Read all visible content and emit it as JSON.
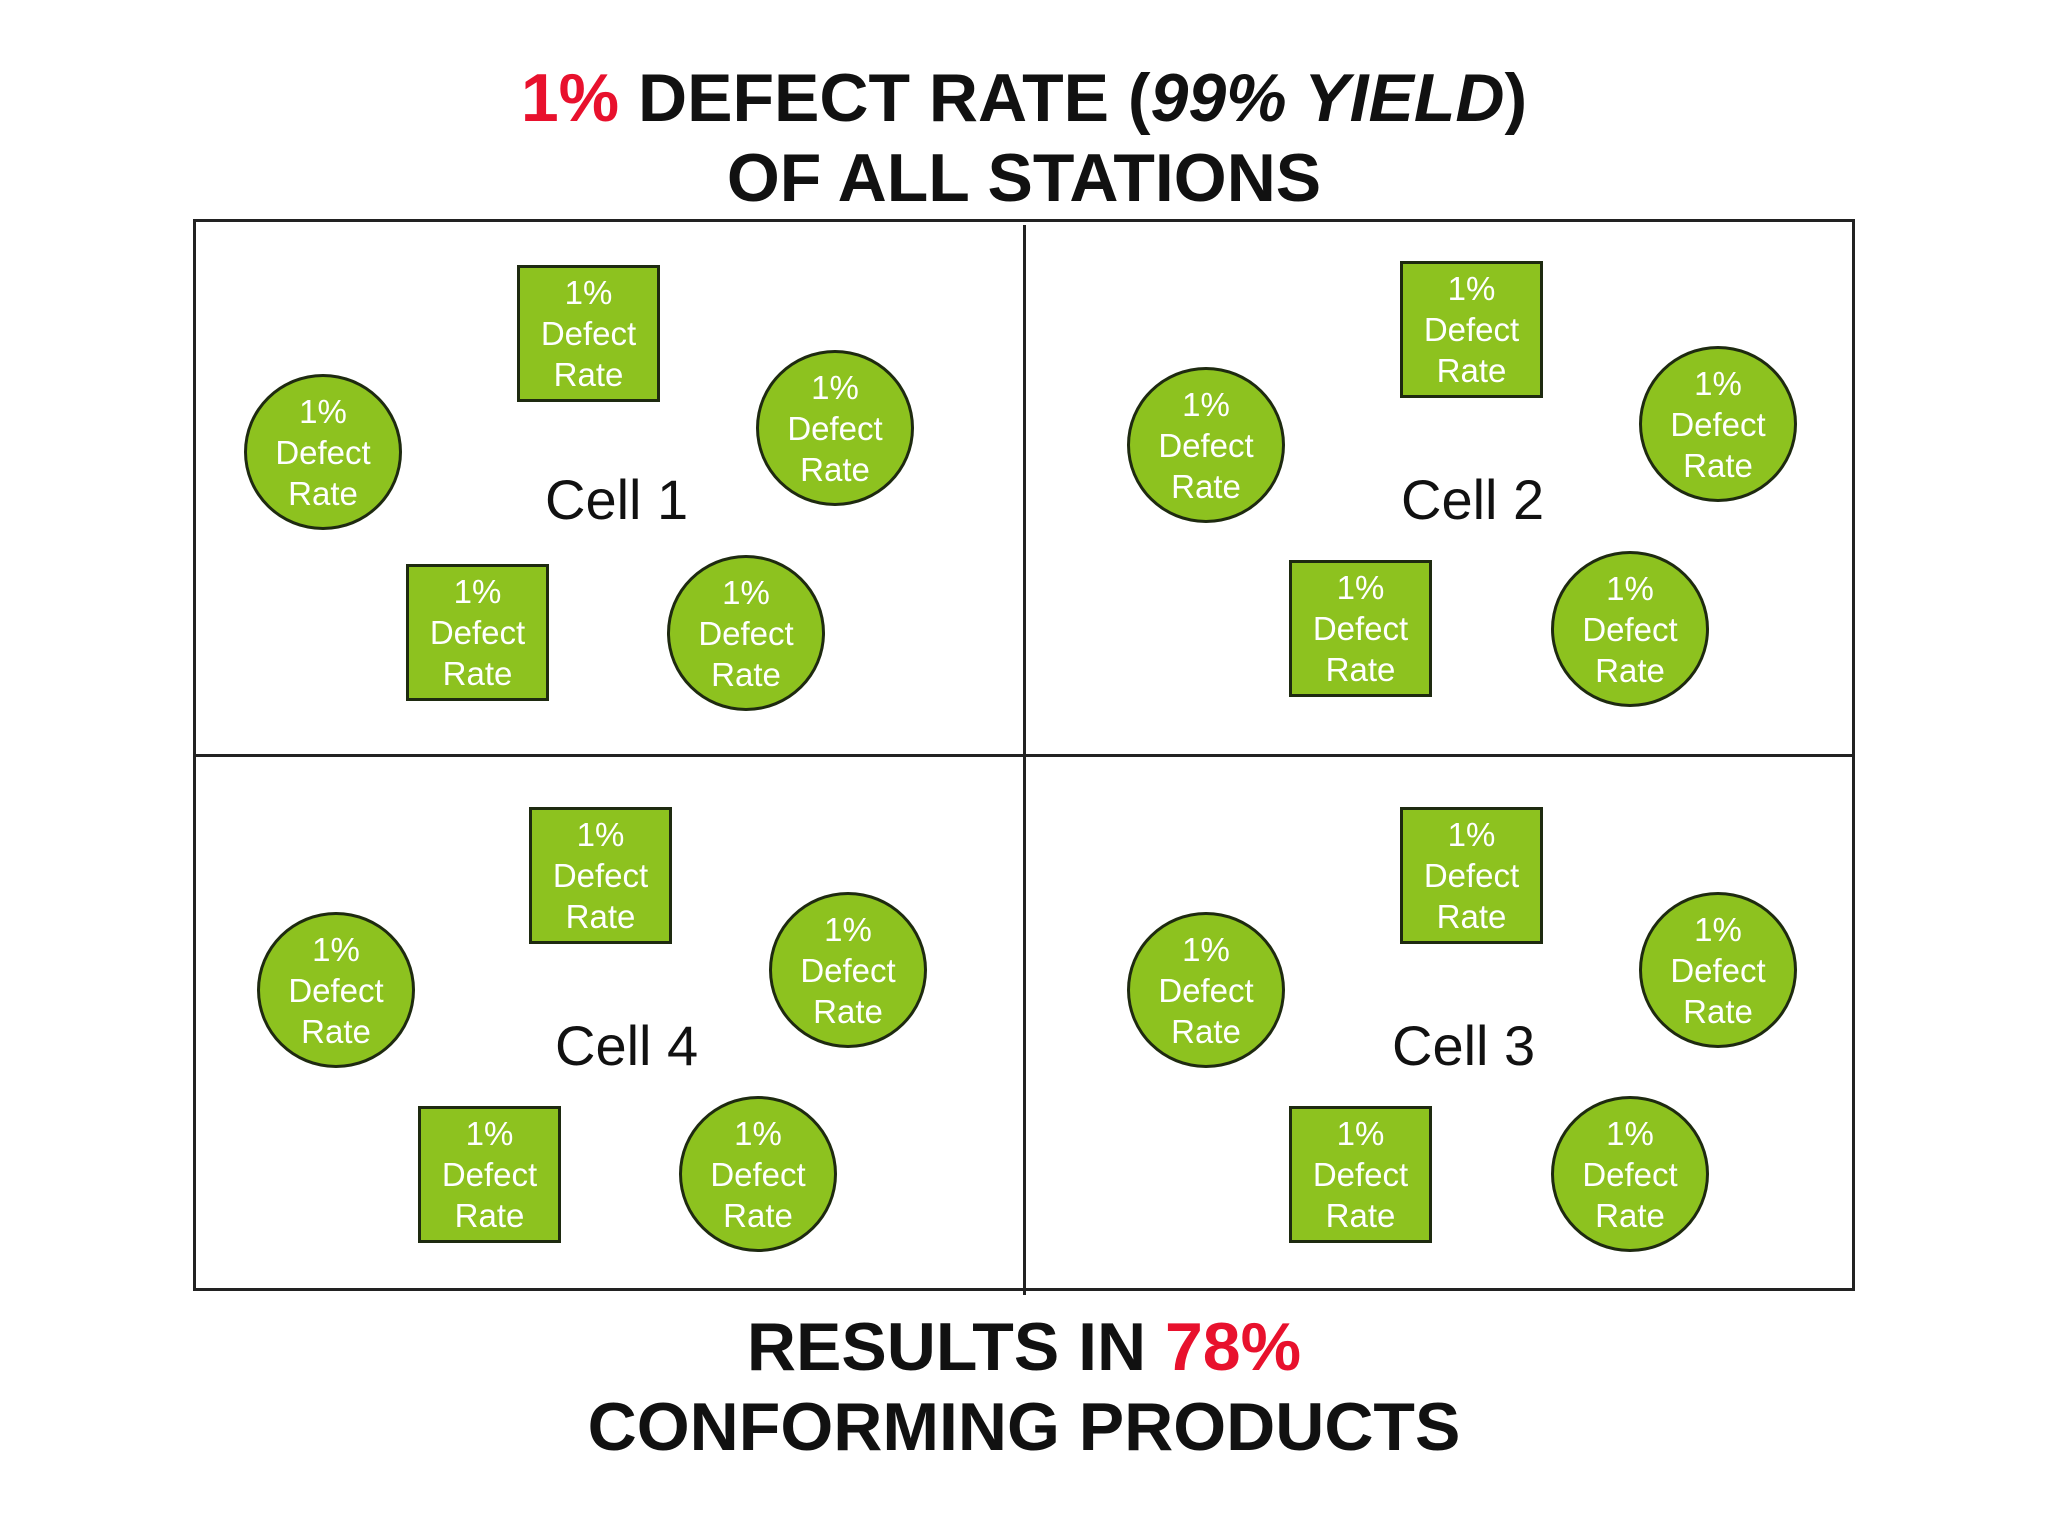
{
  "heading": {
    "line1_accent": "1%",
    "line1_rest": " DEFECT RATE (",
    "line1_italic": "99% YIELD",
    "line1_close": ")",
    "line2": "OF ALL STATIONS"
  },
  "footer": {
    "line1_prefix": "RESULTS IN ",
    "line1_accent": "78%",
    "line2": "CONFORMING PRODUCTS"
  },
  "colors": {
    "accent_red": "#e8112d",
    "station_green": "#8dc21f",
    "station_border": "#1e2a10"
  },
  "cells": [
    {
      "label": "Cell 1"
    },
    {
      "label": "Cell 2"
    },
    {
      "label": "Cell 4"
    },
    {
      "label": "Cell 3"
    }
  ],
  "station": {
    "pct": "1%",
    "word1": "Defect",
    "word2": "Rate"
  }
}
